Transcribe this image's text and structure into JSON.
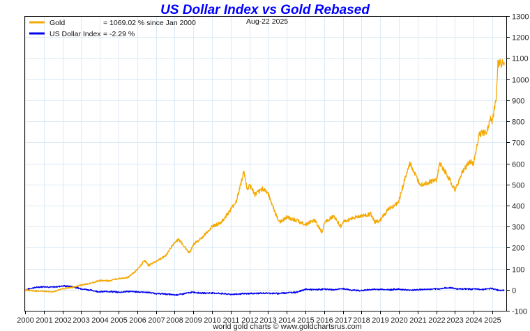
{
  "chart_data": {
    "type": "line",
    "title": "US Dollar Index vs Gold Rebased",
    "date_label": "Aug-22  2025",
    "credit": "world gold charts © www.goldchartsrus.com",
    "xlabel": "",
    "ylabel": "",
    "xlim": [
      2000,
      2025.75
    ],
    "ylim": [
      -100,
      1300
    ],
    "grid": true,
    "legend_placement": "top-left",
    "x_ticks": [
      "2000",
      "2001",
      "2002",
      "2003",
      "2004",
      "2005",
      "2006",
      "2007",
      "2008",
      "2009",
      "2010",
      "2011",
      "2012",
      "2013",
      "2014",
      "2015",
      "2016",
      "2017",
      "2018",
      "2019",
      "2020",
      "2021",
      "2022",
      "2023",
      "2024",
      "2025"
    ],
    "y_ticks": [
      "1300",
      "1200",
      "1100",
      "1000",
      "900",
      "800",
      "700",
      "600",
      "500",
      "400",
      "300",
      "200",
      "100",
      "0",
      "-100"
    ],
    "colors": {
      "gold": "#f5a800",
      "usd": "#0000ee",
      "grid": "#dceaf5",
      "axis": "#000000"
    },
    "series": [
      {
        "name": "Gold",
        "legend_value": "= 1069.02 % since Jan 2000",
        "color": "#f5a800",
        "x": [
          2000,
          2000.5,
          2001,
          2001.5,
          2002,
          2002.5,
          2003,
          2003.5,
          2004,
          2004.5,
          2005,
          2005.5,
          2006,
          2006.4,
          2006.6,
          2007,
          2007.5,
          2008,
          2008.2,
          2008.8,
          2009,
          2009.5,
          2010,
          2010.5,
          2011,
          2011.3,
          2011.7,
          2011.9,
          2012,
          2012.3,
          2012.7,
          2013,
          2013.4,
          2013.6,
          2014,
          2014.5,
          2015,
          2015.5,
          2015.9,
          2016,
          2016.5,
          2016.9,
          2017,
          2017.5,
          2018,
          2018.5,
          2018.7,
          2019,
          2019.5,
          2019.8,
          2020,
          2020.3,
          2020.6,
          2021,
          2021.2,
          2021.6,
          2022,
          2022.2,
          2022.8,
          2023,
          2023.4,
          2023.8,
          2024,
          2024.3,
          2024.7,
          2024.9,
          2025,
          2025.2,
          2025.3,
          2025.64
        ],
        "y": [
          0,
          -6,
          -7,
          -10,
          5,
          10,
          22,
          30,
          44,
          42,
          55,
          58,
          95,
          140,
          115,
          135,
          160,
          225,
          240,
          175,
          215,
          250,
          300,
          320,
          380,
          420,
          560,
          470,
          500,
          450,
          480,
          460,
          360,
          320,
          345,
          330,
          310,
          330,
          270,
          320,
          350,
          300,
          320,
          340,
          350,
          360,
          320,
          330,
          390,
          400,
          420,
          520,
          600,
          520,
          500,
          510,
          520,
          600,
          510,
          470,
          560,
          610,
          600,
          740,
          750,
          820,
          800,
          910,
          1080,
          1069
        ]
      },
      {
        "name": "US Dollar Index",
        "legend_value": "= -2.29 %",
        "color": "#0000ee",
        "x": [
          2000,
          2000.5,
          2001,
          2001.5,
          2002,
          2002.5,
          2003,
          2003.5,
          2004,
          2004.5,
          2005,
          2005.5,
          2006,
          2006.5,
          2007,
          2007.5,
          2008,
          2008.3,
          2008.8,
          2009,
          2009.5,
          2010,
          2010.5,
          2011,
          2011.5,
          2012,
          2012.5,
          2013,
          2013.5,
          2014,
          2014.5,
          2015,
          2015.5,
          2016,
          2016.5,
          2017,
          2017.5,
          2018,
          2018.5,
          2019,
          2019.5,
          2020,
          2020.5,
          2021,
          2021.5,
          2022,
          2022.5,
          2022.8,
          2023,
          2023.5,
          2024,
          2024.5,
          2025,
          2025.3,
          2025.64
        ],
        "y": [
          0,
          10,
          15,
          12,
          18,
          15,
          5,
          -2,
          -10,
          -8,
          -12,
          -8,
          -10,
          -12,
          -18,
          -20,
          -25,
          -22,
          -14,
          -12,
          -16,
          -15,
          -18,
          -22,
          -20,
          -18,
          -17,
          -16,
          -18,
          -14,
          -12,
          2,
          0,
          3,
          0,
          5,
          -2,
          -4,
          1,
          2,
          0,
          3,
          -2,
          0,
          2,
          3,
          8,
          10,
          5,
          4,
          3,
          2,
          6,
          -2,
          -2.29
        ]
      }
    ]
  }
}
